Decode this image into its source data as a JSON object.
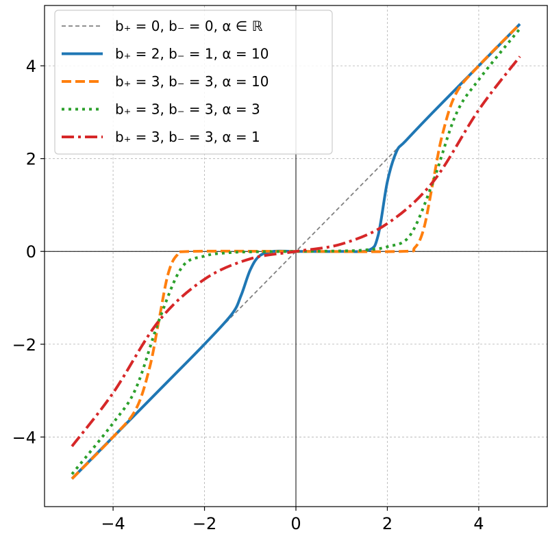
{
  "chart_data": {
    "type": "line",
    "title": "",
    "xlabel": "",
    "ylabel": "",
    "xlim": [
      -5.5,
      5.5
    ],
    "ylim": [
      -5.5,
      5.3
    ],
    "xticks": [
      -4,
      -2,
      0,
      2,
      4
    ],
    "yticks": [
      -4,
      -2,
      0,
      2,
      4
    ],
    "xtick_labels": [
      "−4",
      "−2",
      "0",
      "2",
      "4"
    ],
    "ytick_labels": [
      "−4",
      "−2",
      "0",
      "2",
      "4"
    ],
    "grid": true,
    "zero_axes": true,
    "legend_position": "upper-left",
    "x_range": [
      -4.9,
      4.9
    ],
    "series": [
      {
        "name": "b₊ = 0, b₋ = 0, α ∈ ℝ",
        "b_plus": 0,
        "b_minus": 0,
        "alpha": null,
        "color": "#808080",
        "style": "dashed-thin",
        "x": [
          -4.9,
          -2,
          -1,
          0,
          1,
          2,
          4.9
        ],
        "y": [
          -4.9,
          -2,
          -1,
          0,
          1,
          2,
          4.9
        ]
      },
      {
        "name": "b₊ = 2, b₋ = 1, α = 10",
        "b_plus": 2,
        "b_minus": 1,
        "alpha": 10,
        "color": "#1f77b4",
        "style": "solid",
        "x": [
          -4.9,
          -3,
          -2,
          -1.4,
          -1.2,
          -1.0,
          -0.8,
          -0.5,
          0,
          1,
          1.6,
          1.8,
          2.0,
          2.2,
          2.4,
          3,
          4,
          4.9
        ],
        "y": [
          -4.9,
          -3.0,
          -2.0,
          -1.35,
          -0.95,
          -0.4,
          -0.1,
          0.0,
          0.0,
          0.0,
          0.03,
          0.35,
          1.5,
          2.15,
          2.38,
          3.0,
          4.0,
          4.9
        ]
      },
      {
        "name": "b₊ = 3, b₋ = 3, α = 10",
        "b_plus": 3,
        "b_minus": 3,
        "alpha": 10,
        "color": "#ff7f0e",
        "style": "dashed",
        "x": [
          -4.9,
          -4,
          -3.5,
          -3.2,
          -3.0,
          -2.8,
          -2.6,
          -2.3,
          0,
          2.3,
          2.6,
          2.8,
          3.0,
          3.2,
          3.5,
          4,
          4.9
        ],
        "y": [
          -4.9,
          -4.0,
          -3.4,
          -2.5,
          -1.5,
          -0.5,
          -0.08,
          0.0,
          0.0,
          0.0,
          0.08,
          0.5,
          1.5,
          2.5,
          3.4,
          4.0,
          4.9
        ]
      },
      {
        "name": "b₊ = 3, b₋ = 3, α = 3",
        "b_plus": 3,
        "b_minus": 3,
        "alpha": 3,
        "color": "#2ca02c",
        "style": "dotted",
        "x": [
          -4.9,
          -4.0,
          -3.5,
          -3.0,
          -2.5,
          -2.0,
          -1.5,
          -1.0,
          0,
          1.0,
          1.5,
          2.0,
          2.5,
          3.0,
          3.5,
          4.0,
          4.9
        ],
        "y": [
          -4.8,
          -3.7,
          -2.95,
          -1.5,
          -0.35,
          -0.1,
          -0.03,
          -0.01,
          0.0,
          0.01,
          0.03,
          0.1,
          0.35,
          1.5,
          2.95,
          3.7,
          4.8
        ]
      },
      {
        "name": "b₊ = 3, b₋ = 3, α = 1",
        "b_plus": 3,
        "b_minus": 3,
        "alpha": 1,
        "color": "#d62728",
        "style": "dashdot",
        "x": [
          -4.9,
          -4.0,
          -3.0,
          -2.0,
          -1.0,
          0,
          1.0,
          2.0,
          3.0,
          4.0,
          4.9
        ],
        "y": [
          -4.2,
          -3.05,
          -1.5,
          -0.6,
          -0.16,
          0.0,
          0.16,
          0.6,
          1.5,
          3.05,
          4.2
        ]
      }
    ]
  }
}
